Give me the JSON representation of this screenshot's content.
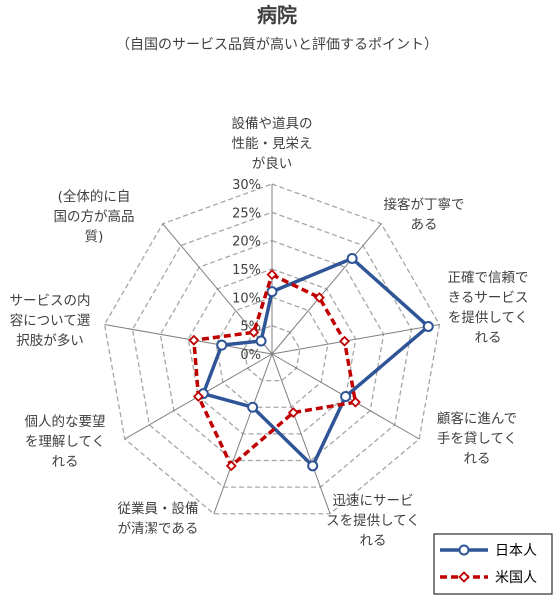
{
  "chart_data": {
    "type": "radar",
    "title": "病院",
    "subtitle": "（自国のサービス品質が高いと評価するポイント）",
    "categories": [
      [
        "設備や道具の",
        "性能・見栄え",
        "が良い"
      ],
      [
        "接客が丁寧で",
        "ある"
      ],
      [
        "正確で信頼で",
        "きるサービス",
        "を提供してく",
        "れる"
      ],
      [
        "顧客に進んで",
        "手を貸してく",
        "れる"
      ],
      [
        "迅速にサービ",
        "スを提供してく",
        "れる"
      ],
      [
        "従業員・設備",
        "が清潔である"
      ],
      [
        "個人的な要望",
        "を理解してく",
        "れる"
      ],
      [
        "サービスの内",
        "容について選",
        "択肢が多い"
      ],
      [
        "(全体的に自",
        "国の方が高品",
        "質)"
      ]
    ],
    "tick_labels": [
      "0%",
      "5%",
      "10%",
      "15%",
      "20%",
      "25%",
      "30%"
    ],
    "rlim": [
      0,
      30
    ],
    "series": [
      {
        "name": "日本人",
        "color": "#2F5597",
        "values": [
          11,
          22,
          28,
          15,
          21,
          10,
          14,
          9,
          3
        ]
      },
      {
        "name": "米国人",
        "color": "#C00000",
        "values": [
          14,
          13,
          13,
          17,
          11,
          21,
          15,
          14,
          5
        ]
      }
    ],
    "legend_position": "bottom-right",
    "grid": true
  }
}
